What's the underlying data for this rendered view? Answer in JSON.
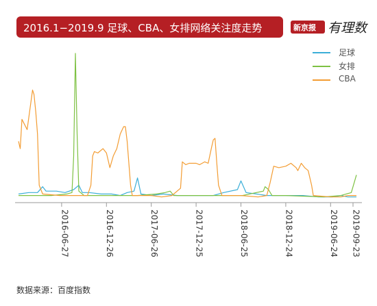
{
  "header": {
    "title": "2016.1−2019.9 足球、CBA、女排网络关注度走势",
    "brand_stamp": "新京报",
    "brand_script": "有理数"
  },
  "source_note": "数据来源：百度指数",
  "chart_data": {
    "type": "line",
    "title": "2016.1−2019.9 足球、CBA、女排网络关注度走势",
    "xlabel": "",
    "ylabel": "",
    "x_tick_labels": [
      "2016-06-27",
      "2016-12-26",
      "2017-06-26",
      "2017-12-25",
      "2018-06-25",
      "2018-12-24",
      "2019-06-24",
      "2019-09-23"
    ],
    "x_tick_dates": [
      "2016-06-27",
      "2016-12-26",
      "2017-06-26",
      "2017-12-25",
      "2018-06-25",
      "2018-12-24",
      "2019-06-24",
      "2019-09-23"
    ],
    "x_range": [
      "2016-01-04",
      "2019-10-07"
    ],
    "y_range": [
      0,
      100
    ],
    "y_axis_shown": false,
    "grid": false,
    "legend_position": "top-right",
    "series": [
      {
        "name": "足球",
        "color": "#3aaed8",
        "points": [
          [
            "2016-01-04",
            4
          ],
          [
            "2016-02-15",
            5
          ],
          [
            "2016-03-21",
            5
          ],
          [
            "2016-04-11",
            9
          ],
          [
            "2016-04-25",
            6
          ],
          [
            "2016-06-06",
            6
          ],
          [
            "2016-07-11",
            5
          ],
          [
            "2016-08-15",
            7
          ],
          [
            "2016-09-05",
            10
          ],
          [
            "2016-09-19",
            5
          ],
          [
            "2016-10-17",
            5
          ],
          [
            "2016-12-05",
            4
          ],
          [
            "2017-01-16",
            4
          ],
          [
            "2017-02-20",
            3
          ],
          [
            "2017-03-20",
            5
          ],
          [
            "2017-04-17",
            6
          ],
          [
            "2017-05-01",
            15
          ],
          [
            "2017-05-15",
            4
          ],
          [
            "2017-06-26",
            3
          ],
          [
            "2017-08-14",
            4
          ],
          [
            "2017-10-09",
            3
          ],
          [
            "2017-12-25",
            3
          ],
          [
            "2018-03-05",
            3
          ],
          [
            "2018-04-16",
            5
          ],
          [
            "2018-06-11",
            7
          ],
          [
            "2018-06-25",
            13
          ],
          [
            "2018-07-16",
            5
          ],
          [
            "2018-08-27",
            4
          ],
          [
            "2018-10-08",
            3
          ],
          [
            "2018-11-19",
            3
          ],
          [
            "2018-12-24",
            3
          ],
          [
            "2019-03-04",
            3
          ],
          [
            "2019-05-06",
            2
          ],
          [
            "2019-07-01",
            2
          ],
          [
            "2019-08-05",
            3
          ],
          [
            "2019-09-02",
            2
          ],
          [
            "2019-10-07",
            2
          ]
        ]
      },
      {
        "name": "女排",
        "color": "#7dc142",
        "points": [
          [
            "2016-01-04",
            3
          ],
          [
            "2016-03-07",
            3
          ],
          [
            "2016-05-16",
            3
          ],
          [
            "2016-07-18",
            4
          ],
          [
            "2016-08-08",
            5
          ],
          [
            "2016-08-15",
            30
          ],
          [
            "2016-08-22",
            100
          ],
          [
            "2016-08-29",
            45
          ],
          [
            "2016-09-05",
            6
          ],
          [
            "2016-09-26",
            3
          ],
          [
            "2016-12-26",
            3
          ],
          [
            "2017-05-01",
            3
          ],
          [
            "2017-07-17",
            4
          ],
          [
            "2017-08-21",
            5
          ],
          [
            "2017-09-11",
            6
          ],
          [
            "2017-09-25",
            3
          ],
          [
            "2017-12-25",
            3
          ],
          [
            "2018-05-21",
            3
          ],
          [
            "2018-07-02",
            3
          ],
          [
            "2018-09-24",
            6
          ],
          [
            "2018-10-01",
            9
          ],
          [
            "2018-10-15",
            7
          ],
          [
            "2018-10-29",
            3
          ],
          [
            "2018-12-24",
            3
          ],
          [
            "2019-05-27",
            2
          ],
          [
            "2019-08-05",
            3
          ],
          [
            "2019-09-16",
            5
          ],
          [
            "2019-09-30",
            13
          ],
          [
            "2019-10-07",
            17
          ]
        ]
      },
      {
        "name": "CBA",
        "color": "#f39c32",
        "points": [
          [
            "2016-01-04",
            40
          ],
          [
            "2016-01-11",
            35
          ],
          [
            "2016-01-18",
            55
          ],
          [
            "2016-02-08",
            48
          ],
          [
            "2016-03-01",
            75
          ],
          [
            "2016-03-07",
            72
          ],
          [
            "2016-03-14",
            60
          ],
          [
            "2016-03-21",
            45
          ],
          [
            "2016-03-28",
            10
          ],
          [
            "2016-04-11",
            4
          ],
          [
            "2016-06-20",
            3
          ],
          [
            "2016-09-05",
            3
          ],
          [
            "2016-10-10",
            3
          ],
          [
            "2016-10-24",
            10
          ],
          [
            "2016-10-31",
            30
          ],
          [
            "2016-11-07",
            33
          ],
          [
            "2016-11-21",
            32
          ],
          [
            "2016-12-12",
            35
          ],
          [
            "2016-12-26",
            32
          ],
          [
            "2017-01-09",
            22
          ],
          [
            "2017-01-23",
            30
          ],
          [
            "2017-02-06",
            35
          ],
          [
            "2017-02-20",
            45
          ],
          [
            "2017-03-06",
            50
          ],
          [
            "2017-03-13",
            50
          ],
          [
            "2017-03-20",
            40
          ],
          [
            "2017-04-03",
            10
          ],
          [
            "2017-04-10",
            3
          ],
          [
            "2017-06-26",
            3
          ],
          [
            "2017-08-07",
            2
          ],
          [
            "2017-09-18",
            3
          ],
          [
            "2017-10-23",
            8
          ],
          [
            "2017-10-30",
            26
          ],
          [
            "2017-11-13",
            24
          ],
          [
            "2017-11-27",
            25
          ],
          [
            "2017-12-25",
            25
          ],
          [
            "2018-01-08",
            24
          ],
          [
            "2018-01-29",
            26
          ],
          [
            "2018-02-12",
            25
          ],
          [
            "2018-02-26",
            36
          ],
          [
            "2018-03-05",
            41
          ],
          [
            "2018-03-12",
            42
          ],
          [
            "2018-03-19",
            25
          ],
          [
            "2018-03-26",
            10
          ],
          [
            "2018-04-09",
            3
          ],
          [
            "2018-06-25",
            3
          ],
          [
            "2018-09-03",
            2
          ],
          [
            "2018-10-08",
            3
          ],
          [
            "2018-10-22",
            12
          ],
          [
            "2018-11-05",
            23
          ],
          [
            "2018-11-26",
            22
          ],
          [
            "2018-12-24",
            23
          ],
          [
            "2019-01-14",
            25
          ],
          [
            "2019-02-04",
            22
          ],
          [
            "2019-02-11",
            20
          ],
          [
            "2019-02-25",
            25
          ],
          [
            "2019-03-11",
            22
          ],
          [
            "2019-03-25",
            20
          ],
          [
            "2019-04-08",
            10
          ],
          [
            "2019-04-15",
            3
          ],
          [
            "2019-06-24",
            2
          ],
          [
            "2019-08-05",
            2
          ],
          [
            "2019-09-02",
            3
          ],
          [
            "2019-10-07",
            3
          ]
        ]
      }
    ]
  }
}
